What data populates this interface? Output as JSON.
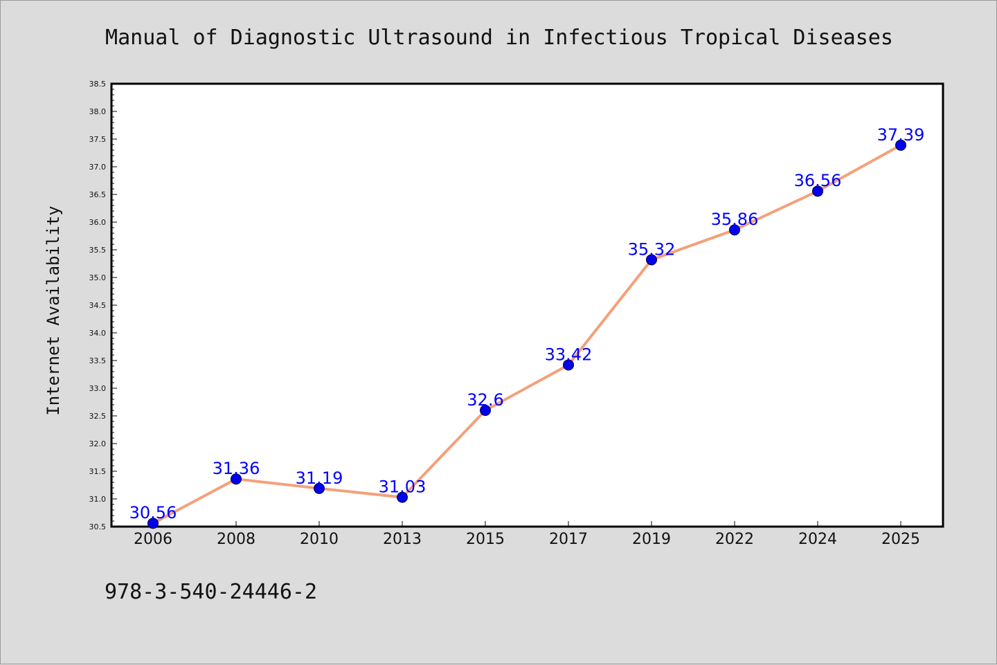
{
  "chart_data": {
    "type": "line",
    "title": "Manual of Diagnostic Ultrasound in Infectious Tropical Diseases",
    "xlabel": "",
    "ylabel": "Internet Availability",
    "categories": [
      "2006",
      "2008",
      "2010",
      "2013",
      "2015",
      "2017",
      "2019",
      "2022",
      "2024",
      "2025"
    ],
    "series": [
      {
        "values": [
          30.56,
          31.36,
          31.19,
          31.03,
          32.6,
          33.42,
          35.32,
          35.86,
          36.56,
          37.39
        ],
        "labels": [
          "30.56",
          "31.36",
          "31.19",
          "31.03",
          "32.6",
          "33.42",
          "35.32",
          "35.86",
          "36.56",
          "37.39"
        ],
        "line_color": "#f4a07a",
        "marker_color": "#0000ee"
      }
    ],
    "ylim": [
      30.5,
      38.5
    ],
    "yticks": [
      "30.5",
      "31.0",
      "31.5",
      "32.0",
      "32.5",
      "33.0",
      "33.5",
      "34.0",
      "34.5",
      "35.0",
      "35.5",
      "36.0",
      "36.5",
      "37.0",
      "37.5",
      "38.0",
      "38.5"
    ],
    "grid": false,
    "legend": "none",
    "label_color": "#0000ff",
    "background": "#dcdcdc"
  },
  "footer": {
    "isbn": "978-3-540-24446-2"
  }
}
